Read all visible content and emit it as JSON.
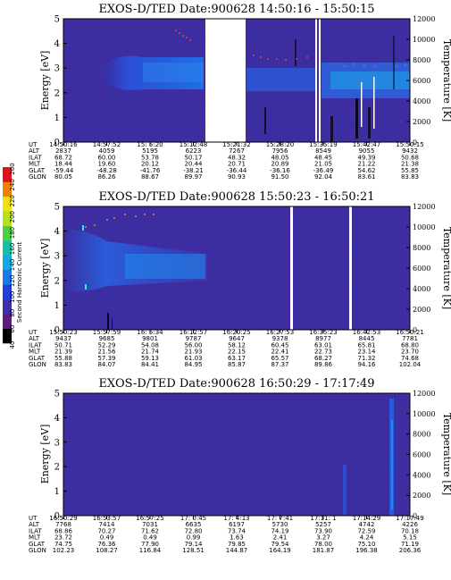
{
  "colorbar": {
    "label": "Second Harmonic Current",
    "ticks": [
      "40",
      "60",
      "80",
      "100",
      "120",
      "140",
      "160",
      "180",
      "200",
      "220",
      "240",
      "260"
    ],
    "colors": [
      "#000000",
      "#5a1e7c",
      "#3c2fa8",
      "#2040d8",
      "#1a78e8",
      "#12a8e0",
      "#16c0a8",
      "#4ad048",
      "#b8e01c",
      "#f0e010",
      "#f08008",
      "#e01414"
    ]
  },
  "panels": [
    {
      "title": "EXOS-D/TED   Date:900628  14:50:16 - 15:50:15",
      "ylabel": "Energy [eV]",
      "y2label": "Temperature [K]",
      "yticks": [
        "0",
        "1",
        "2",
        "3",
        "4",
        "5"
      ],
      "y2ticks": [
        "0",
        "2000",
        "4000",
        "6000",
        "8000",
        "10000",
        "12000"
      ],
      "rows": [
        {
          "label": "UT",
          "values": [
            "14:50:16",
            "14:57:52",
            "15: 5:20",
            "15:12:48",
            "15:21:32",
            "15:28:20",
            "15:35:19",
            "15:42:47",
            "15:50:15"
          ]
        },
        {
          "label": "ALT",
          "values": [
            "2837",
            "4059",
            "5195",
            "6223",
            "7267",
            "7956",
            "8549",
            "9055",
            "9432"
          ]
        },
        {
          "label": "ILAT",
          "values": [
            "68.72",
            "60.00",
            "53.78",
            "50.17",
            "48.32",
            "48.05",
            "48.45",
            "49.39",
            "50.68"
          ]
        },
        {
          "label": "MLT",
          "values": [
            "18.44",
            "19.60",
            "20.12",
            "20.44",
            "20.71",
            "20.89",
            "21.05",
            "21.22",
            "21.38"
          ]
        },
        {
          "label": "GLAT",
          "values": [
            "-59.44",
            "-48.28",
            "-41.76",
            "-38.21",
            "-36.44",
            "-36.16",
            "-36.49",
            "54.62",
            "55.85"
          ]
        },
        {
          "label": "GLON",
          "values": [
            "80.05",
            "86.26",
            "88.67",
            "89.97",
            "90.93",
            "91.50",
            "92.04",
            "83.61",
            "83.83"
          ]
        }
      ]
    },
    {
      "title": "EXOS-D/TED   Date:900628  15:50:23 - 16:50:21",
      "ylabel": "Energy [eV]",
      "y2label": "Temperature [K]",
      "yticks": [
        "0",
        "1",
        "2",
        "3",
        "4",
        "5"
      ],
      "y2ticks": [
        "0",
        "2000",
        "4000",
        "6000",
        "8000",
        "10000",
        "12000"
      ],
      "rows": [
        {
          "label": "UT",
          "values": [
            "15:50:23",
            "15:57:59",
            "16: 5:34",
            "16:12:57",
            "16:20:25",
            "16:27:53",
            "16:35:23",
            "16:42:53",
            "16:50:21"
          ]
        },
        {
          "label": "ALT",
          "values": [
            "9437",
            "9685",
            "9801",
            "9787",
            "9647",
            "9378",
            "8977",
            "8445",
            "7781"
          ]
        },
        {
          "label": "ILAT",
          "values": [
            "50.71",
            "52.29",
            "54.08",
            "56.00",
            "58.12",
            "60.45",
            "63.01",
            "65.81",
            "68.80"
          ]
        },
        {
          "label": "MLT",
          "values": [
            "21.39",
            "21.56",
            "21.74",
            "21.93",
            "22.15",
            "22.41",
            "22.73",
            "23.14",
            "23.70"
          ]
        },
        {
          "label": "GLAT",
          "values": [
            "55.88",
            "57.39",
            "59.13",
            "61.03",
            "63.17",
            "65.57",
            "68.27",
            "71.32",
            "74.68"
          ]
        },
        {
          "label": "GLON",
          "values": [
            "83.83",
            "84.07",
            "84.41",
            "84.95",
            "85.87",
            "87.37",
            "89.86",
            "94.16",
            "102.04"
          ]
        }
      ]
    },
    {
      "title": "EXOS-D/TED   Date:900628  16:50:29 - 17:17:49",
      "ylabel": "Energy [eV]",
      "y2label": "Temperature [K]",
      "yticks": [
        "0",
        "1",
        "2",
        "3",
        "4",
        "5"
      ],
      "y2ticks": [
        "0",
        "2000",
        "4000",
        "6000",
        "8000",
        "10000",
        "12000"
      ],
      "rows": [
        {
          "label": "UT",
          "values": [
            "16:50:29",
            "16:53:57",
            "16:57:25",
            "17: 0:45",
            "17: 4:13",
            "17: 7:41",
            "17:11: 1",
            "17:14:29",
            "17:17:49"
          ]
        },
        {
          "label": "ALT",
          "values": [
            "7768",
            "7414",
            "7031",
            "6635",
            "6197",
            "5730",
            "5257",
            "4742",
            "4226"
          ]
        },
        {
          "label": "ILAT",
          "values": [
            "68.86",
            "70.27",
            "71.62",
            "72.80",
            "73.74",
            "74.19",
            "73.90",
            "72.59",
            "70.18"
          ]
        },
        {
          "label": "MLT",
          "values": [
            "23.72",
            "0.49",
            "0.49",
            "0.99",
            "1.63",
            "2.41",
            "3.27",
            "4.24",
            "5.15"
          ]
        },
        {
          "label": "GLAT",
          "values": [
            "74.75",
            "76.36",
            "77.90",
            "79.14",
            "79.85",
            "79.54",
            "78.00",
            "75.10",
            "71.19"
          ]
        },
        {
          "label": "GLON",
          "values": [
            "102.23",
            "108.27",
            "116.84",
            "128.51",
            "144.87",
            "164.19",
            "181.87",
            "196.38",
            "206.36"
          ]
        }
      ]
    }
  ],
  "chart_data": {
    "type": "heatmap",
    "colorbar_label": "Second Harmonic Current",
    "colorbar_range": [
      40,
      260
    ],
    "panels": [
      {
        "title": "EXOS-D/TED   Date:900628  14:50:16 - 15:50:15",
        "x_range": [
          "14:50:16",
          "15:50:15"
        ],
        "ylabel": "Energy [eV]",
        "ylim": [
          0,
          5
        ],
        "y2label": "Temperature [K]",
        "y2lim": [
          0,
          12000
        ],
        "data_gaps": [
          "15:15 - 15:19"
        ]
      },
      {
        "title": "EXOS-D/TED   Date:900628  15:50:23 - 16:50:21",
        "x_range": [
          "15:50:23",
          "16:50:21"
        ],
        "ylabel": "Energy [eV]",
        "ylim": [
          0,
          5
        ],
        "y2label": "Temperature [K]",
        "y2lim": [
          0,
          12000
        ]
      },
      {
        "title": "EXOS-D/TED   Date:900628  16:50:29 - 17:17:49",
        "x_range": [
          "16:50:29",
          "17:17:49"
        ],
        "ylabel": "Energy [eV]",
        "ylim": [
          0,
          5
        ],
        "y2label": "Temperature [K]",
        "y2lim": [
          0,
          12000
        ]
      }
    ]
  }
}
